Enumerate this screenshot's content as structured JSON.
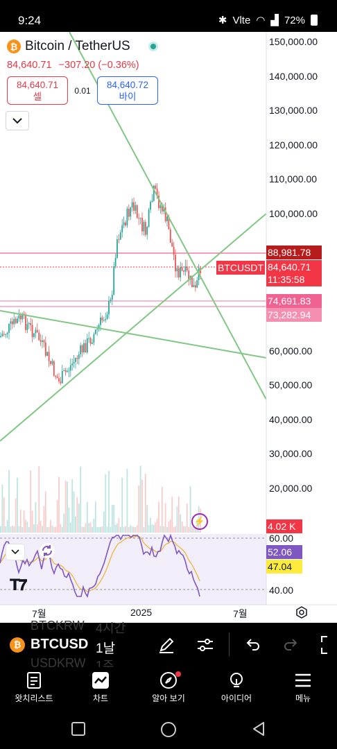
{
  "status_bar": {
    "time": "9:24",
    "battery": "72%",
    "carrier": "Vlte"
  },
  "symbol": {
    "name": "Bitcoin / TetherUS",
    "logo": "₿"
  },
  "price": {
    "last": "84,640.71",
    "change": "−307.20 (−0.36%)"
  },
  "trade": {
    "sell_price": "84,640.71",
    "sell_label": "셀",
    "spread": "0.01",
    "buy_price": "84,640.72",
    "buy_label": "바이"
  },
  "y_axis": [
    "150,000.00",
    "140,000.00",
    "130,000.00",
    "120,000.00",
    "110,000.00",
    "100,000.00",
    "60,000.00",
    "50,000.00",
    "40,000.00",
    "30,000.00",
    "20,000.00"
  ],
  "price_tags": {
    "high_level": "88,981.78",
    "current": "84,640.71",
    "countdown": "11:35:58",
    "level_1": "74,691.83",
    "level_2": "73,282.94",
    "volume": "4.02 K",
    "ticker": "BTCUSDT"
  },
  "rsi": {
    "upper": "60.00",
    "lower": "40.00",
    "value": "52.06",
    "signal": "47.04"
  },
  "x_axis": [
    "7월",
    "2025",
    "7월"
  ],
  "toolbar": {
    "symbol": "BTCUSD",
    "interval": "1날",
    "ghost_1": "BTCKRW",
    "ghost_1b": "4시간",
    "ghost_2": "USDKRW",
    "ghost_2b": "1주"
  },
  "nav": [
    {
      "label": "왓치리스트",
      "icon": "watchlist-icon"
    },
    {
      "label": "차트",
      "icon": "chart-icon"
    },
    {
      "label": "알아 보기",
      "icon": "explore-icon"
    },
    {
      "label": "아이디어",
      "icon": "ideas-icon"
    },
    {
      "label": "메뉴",
      "icon": "menu-icon"
    }
  ],
  "colors": {
    "up": "#26a69a",
    "down": "#ef5350",
    "trendline": "#81c784",
    "rsi": "#7e57c2",
    "rsi_signal": "#fbc02d",
    "price_red": "#f23645"
  }
}
